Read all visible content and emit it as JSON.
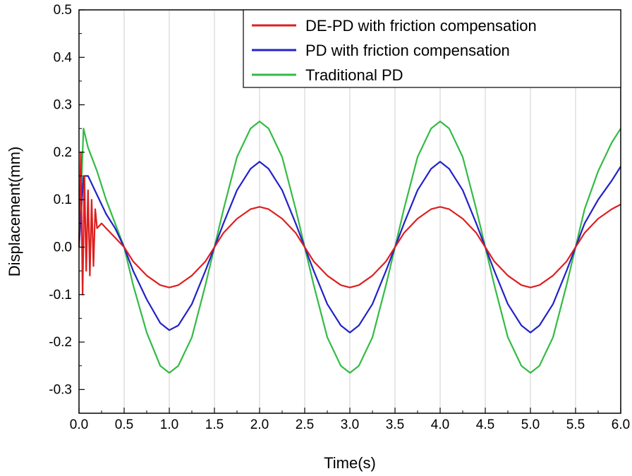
{
  "chart_data": {
    "type": "line",
    "title": "",
    "xlabel": "Time(s)",
    "ylabel": "Displacement(mm)",
    "xlim": [
      0,
      6
    ],
    "ylim": [
      -0.35,
      0.5
    ],
    "xticks": [
      "0.0",
      "0.5",
      "1.0",
      "1.5",
      "2.0",
      "2.5",
      "3.0",
      "3.5",
      "4.0",
      "4.5",
      "5.0",
      "5.5",
      "6.0"
    ],
    "yticks": [
      "-0.3",
      "-0.2",
      "-0.1",
      "0.0",
      "0.1",
      "0.2",
      "0.3",
      "0.4",
      "0.5"
    ],
    "grid": "vertical",
    "legend_position": "top-right",
    "series": [
      {
        "name": "DE-PD with friction compensation",
        "color": "#dd1f1f",
        "x": [
          0.0,
          0.02,
          0.04,
          0.06,
          0.08,
          0.1,
          0.12,
          0.14,
          0.16,
          0.18,
          0.2,
          0.25,
          0.3,
          0.4,
          0.5,
          0.6,
          0.75,
          0.9,
          1.0,
          1.1,
          1.25,
          1.4,
          1.5,
          1.6,
          1.75,
          1.9,
          2.0,
          2.1,
          2.25,
          2.4,
          2.5,
          2.6,
          2.75,
          2.9,
          3.0,
          3.1,
          3.25,
          3.4,
          3.5,
          3.6,
          3.75,
          3.9,
          4.0,
          4.1,
          4.25,
          4.4,
          4.5,
          4.6,
          4.75,
          4.9,
          5.0,
          5.1,
          5.25,
          5.4,
          5.5,
          5.6,
          5.75,
          5.9,
          6.0
        ],
        "y": [
          0.0,
          0.2,
          -0.1,
          0.15,
          -0.05,
          0.12,
          -0.06,
          0.1,
          -0.04,
          0.08,
          0.04,
          0.05,
          0.04,
          0.02,
          0.0,
          -0.03,
          -0.06,
          -0.08,
          -0.085,
          -0.08,
          -0.06,
          -0.03,
          0.0,
          0.03,
          0.06,
          0.08,
          0.085,
          0.08,
          0.06,
          0.03,
          0.0,
          -0.03,
          -0.06,
          -0.08,
          -0.085,
          -0.08,
          -0.06,
          -0.03,
          0.0,
          0.03,
          0.06,
          0.08,
          0.085,
          0.08,
          0.06,
          0.03,
          0.0,
          -0.03,
          -0.06,
          -0.08,
          -0.085,
          -0.08,
          -0.06,
          -0.03,
          0.0,
          0.03,
          0.06,
          0.08,
          0.09
        ]
      },
      {
        "name": "PD with friction compensation",
        "color": "#2222c8",
        "x": [
          0.0,
          0.05,
          0.1,
          0.2,
          0.3,
          0.4,
          0.5,
          0.6,
          0.75,
          0.9,
          1.0,
          1.1,
          1.25,
          1.4,
          1.5,
          1.6,
          1.75,
          1.9,
          2.0,
          2.1,
          2.25,
          2.4,
          2.5,
          2.6,
          2.75,
          2.9,
          3.0,
          3.1,
          3.25,
          3.4,
          3.5,
          3.6,
          3.75,
          3.9,
          4.0,
          4.1,
          4.25,
          4.4,
          4.5,
          4.6,
          4.75,
          4.9,
          5.0,
          5.1,
          5.25,
          5.4,
          5.5,
          5.6,
          5.75,
          5.9,
          6.0
        ],
        "y": [
          0.0,
          0.15,
          0.15,
          0.11,
          0.07,
          0.04,
          0.0,
          -0.05,
          -0.11,
          -0.16,
          -0.175,
          -0.165,
          -0.12,
          -0.05,
          0.0,
          0.05,
          0.12,
          0.165,
          0.18,
          0.165,
          0.12,
          0.05,
          0.0,
          -0.05,
          -0.12,
          -0.165,
          -0.18,
          -0.165,
          -0.12,
          -0.05,
          0.0,
          0.05,
          0.12,
          0.165,
          0.18,
          0.165,
          0.12,
          0.05,
          0.0,
          -0.05,
          -0.12,
          -0.165,
          -0.18,
          -0.165,
          -0.12,
          -0.05,
          0.0,
          0.05,
          0.1,
          0.14,
          0.17
        ]
      },
      {
        "name": "Traditional PD",
        "color": "#33bb44",
        "x": [
          0.0,
          0.05,
          0.1,
          0.2,
          0.3,
          0.4,
          0.5,
          0.6,
          0.75,
          0.9,
          1.0,
          1.1,
          1.25,
          1.4,
          1.5,
          1.6,
          1.75,
          1.9,
          2.0,
          2.1,
          2.25,
          2.4,
          2.5,
          2.6,
          2.75,
          2.9,
          3.0,
          3.1,
          3.25,
          3.4,
          3.5,
          3.6,
          3.75,
          3.9,
          4.0,
          4.1,
          4.25,
          4.4,
          4.5,
          4.6,
          4.75,
          4.9,
          5.0,
          5.1,
          5.25,
          5.4,
          5.5,
          5.6,
          5.75,
          5.9,
          6.0
        ],
        "y": [
          0.0,
          0.25,
          0.21,
          0.16,
          0.1,
          0.05,
          0.0,
          -0.08,
          -0.18,
          -0.25,
          -0.265,
          -0.25,
          -0.19,
          -0.08,
          0.0,
          0.08,
          0.19,
          0.25,
          0.265,
          0.25,
          0.19,
          0.08,
          0.0,
          -0.08,
          -0.19,
          -0.25,
          -0.265,
          -0.25,
          -0.19,
          -0.08,
          0.0,
          0.08,
          0.19,
          0.25,
          0.265,
          0.25,
          0.19,
          0.08,
          0.0,
          -0.08,
          -0.19,
          -0.25,
          -0.265,
          -0.25,
          -0.19,
          -0.08,
          0.0,
          0.08,
          0.16,
          0.22,
          0.25
        ]
      }
    ]
  }
}
